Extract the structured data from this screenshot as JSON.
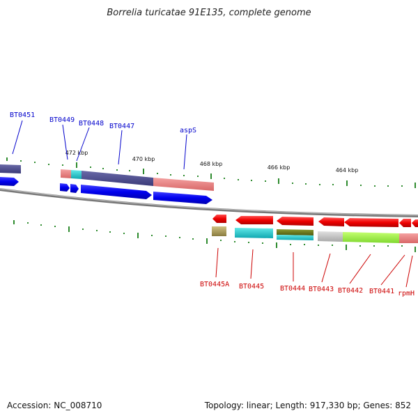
{
  "title": "Borrelia turicatae 91E135, complete genome",
  "footer": {
    "accession": "Accession: NC_008710",
    "stats": "Topology: linear; Length: 917,330 bp; Genes: 852"
  },
  "ruler": {
    "labels": [
      "472 kbp",
      "470 kbp",
      "468 kbp",
      "466 kbp",
      "464 kbp"
    ]
  },
  "genes_top": [
    "BT0451",
    "BT0449",
    "BT0448",
    "BT0447",
    "aspS"
  ],
  "genes_bottom": [
    "BT0445A",
    "BT0445",
    "BT0444",
    "BT0443",
    "BT0442",
    "BT0441",
    "rpmH"
  ],
  "colors": {
    "forward_label": "#0000cc",
    "reverse_label": "#cc0000",
    "forward_arrow": "#0000ee",
    "reverse_arrow": "#ee0000",
    "tick": "#2e8b2e",
    "backbone": "#888888",
    "cog_purple": "#4b4b8c",
    "cog_pink": "#e88080",
    "cog_cyan": "#20c8c8",
    "cog_olive": "#b0a060",
    "cog_lightgreen": "#a0f040",
    "cog_grey": "#c8c8c8"
  }
}
